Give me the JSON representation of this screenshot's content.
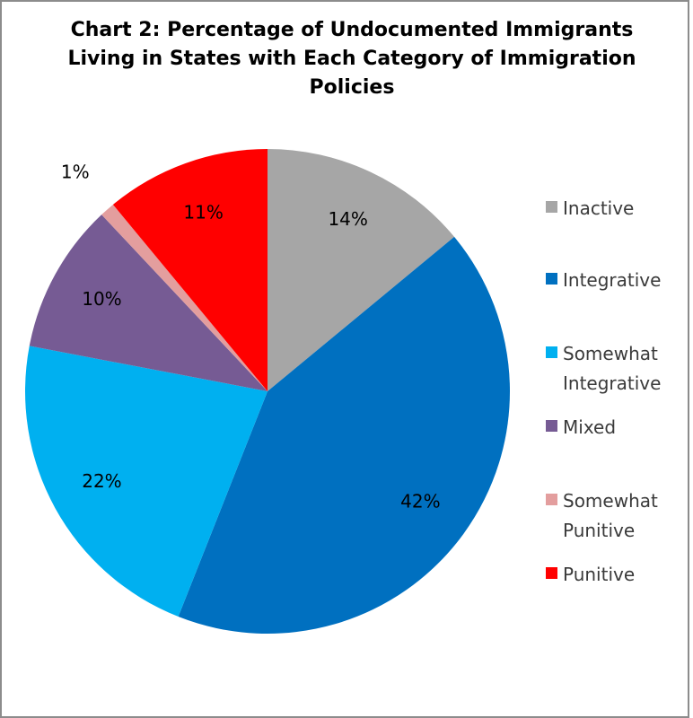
{
  "chart_data": {
    "type": "pie",
    "title": "Chart 2: Percentage of Undocumented Immigrants\nLiving in States with Each Category of Immigration\nPolicies",
    "slices": [
      {
        "name": "Inactive",
        "value": 14,
        "label": "14%",
        "color": "#a6a6a6"
      },
      {
        "name": "Integrative",
        "value": 42,
        "label": "42%",
        "color": "#0070c0"
      },
      {
        "name": "Somewhat Integrative",
        "value": 22,
        "label": "22%",
        "color": "#00b0f0"
      },
      {
        "name": "Mixed",
        "value": 10,
        "label": "10%",
        "color": "#765b94"
      },
      {
        "name": "Somewhat Punitive",
        "value": 1,
        "label": "1%",
        "color": "#e39e9e"
      },
      {
        "name": "Punitive",
        "value": 11,
        "label": "11%",
        "color": "#ff0000"
      }
    ],
    "legend": {
      "placement": "right",
      "items": [
        {
          "label": "Inactive",
          "color": "#a6a6a6"
        },
        {
          "label": "Integrative",
          "color": "#0070c0"
        },
        {
          "label": "Somewhat\nIntegrative",
          "color": "#00b0f0"
        },
        {
          "label": "Mixed",
          "color": "#765b94"
        },
        {
          "label": "Somewhat\nPunitive",
          "color": "#e39e9e"
        },
        {
          "label": "Punitive",
          "color": "#ff0000"
        }
      ]
    }
  }
}
